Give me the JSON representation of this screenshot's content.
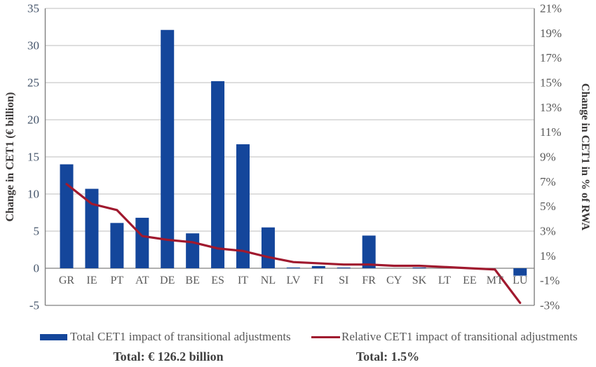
{
  "chart_data": {
    "type": "bar",
    "combo": "bar+line dual axis",
    "title": "",
    "categories": [
      "GR",
      "IE",
      "PT",
      "AT",
      "DE",
      "BE",
      "ES",
      "IT",
      "NL",
      "LV",
      "FI",
      "SI",
      "FR",
      "CY",
      "SK",
      "LT",
      "EE",
      "MT",
      "LU"
    ],
    "series": [
      {
        "name": "Total CET1 impact of transitional adjustments",
        "type": "bar",
        "axis": "left",
        "unit": "€ billion",
        "values": [
          14.0,
          10.7,
          6.1,
          6.8,
          32.1,
          4.7,
          25.2,
          16.7,
          5.5,
          0.1,
          0.3,
          0.1,
          4.4,
          0.0,
          0.1,
          0.0,
          0.0,
          0.0,
          -1.0
        ],
        "total_label": "Total: € 126.2 billion"
      },
      {
        "name": "Relative CET1 impact of transitional adjustments",
        "type": "line",
        "axis": "right",
        "unit": "% of RWA",
        "values": [
          6.8,
          5.2,
          4.7,
          2.6,
          2.3,
          2.1,
          1.6,
          1.4,
          0.9,
          0.5,
          0.4,
          0.3,
          0.3,
          0.2,
          0.2,
          0.1,
          0.0,
          -0.1,
          -2.8
        ],
        "total_label": "Total: 1.5%"
      }
    ],
    "left_axis": {
      "label": "Change in CET1 (€ billion)",
      "ticks": [
        "35",
        "30",
        "25",
        "20",
        "15",
        "10",
        "5",
        "0",
        "-5"
      ],
      "min": -5,
      "max": 35
    },
    "right_axis": {
      "label": "Change in CET1 in % of RWA",
      "ticks": [
        "21%",
        "19%",
        "17%",
        "15%",
        "13%",
        "11%",
        "9%",
        "7%",
        "5%",
        "3%",
        "1%",
        "-1%",
        "-3%"
      ],
      "min_pct": -3,
      "max_pct": 21
    },
    "grid": true,
    "legend_position": "bottom"
  },
  "colors": {
    "bar": "#14469B",
    "line": "#A0192E",
    "grid": "#C9C9C9",
    "axis": "#808080",
    "left_ticks": "#44546A",
    "right_ticks": "#595959",
    "category_labels": "#595959",
    "axis_titles": "#3B3838",
    "legend_text": "#595959",
    "totals_text": "#404040"
  }
}
